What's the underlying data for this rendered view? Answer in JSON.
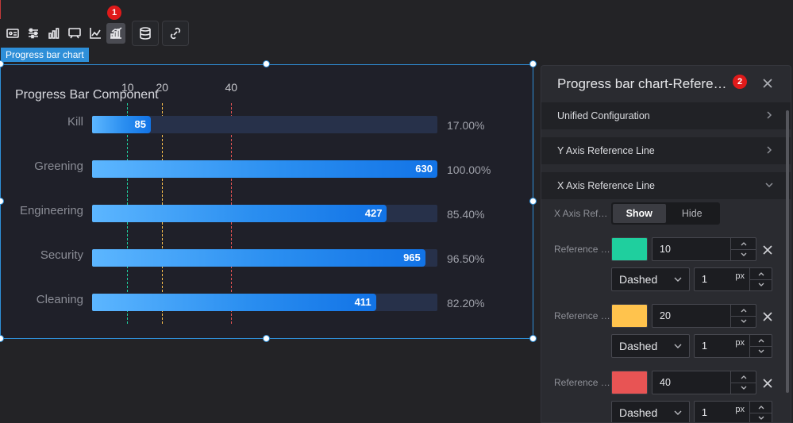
{
  "toolbar": {
    "badge": "1",
    "icons": [
      "card-icon",
      "sliders-icon",
      "bar-chart-icon",
      "comment-icon",
      "trend-icon",
      "progress-chart-icon",
      "database-icon",
      "link-icon"
    ]
  },
  "chart_tag": "Progress bar chart",
  "chart_data": {
    "type": "bar",
    "orientation": "horizontal",
    "title": "Progress Bar Component",
    "categories": [
      "Kill",
      "Greening",
      "Engineering",
      "Security",
      "Cleaning"
    ],
    "values": [
      85,
      630,
      427,
      965,
      411
    ],
    "percent_labels": [
      "17.00%",
      "100.00%",
      "85.40%",
      "96.50%",
      "82.20%"
    ],
    "percent_fill": [
      17.0,
      100.0,
      85.4,
      96.5,
      82.2
    ],
    "reference_lines": [
      {
        "value": 10,
        "color": "#1fcf9e",
        "style": "dashed"
      },
      {
        "value": 20,
        "color": "#ffc34d",
        "style": "dashed"
      },
      {
        "value": 40,
        "color": "#e85454",
        "style": "dashed"
      }
    ],
    "reference_scale_max": 100
  },
  "panel": {
    "badge": "2",
    "title": "Progress bar chart-Reference line",
    "sections": [
      {
        "label": "Unified Configuration",
        "expanded": false
      },
      {
        "label": "Y Axis Reference Line",
        "expanded": false
      },
      {
        "label": "X Axis Reference Line",
        "expanded": true
      }
    ],
    "x_axis_toggle": {
      "label": "X Axis Reference line",
      "options": [
        "Show",
        "Hide"
      ],
      "selected": "Show"
    },
    "references": [
      {
        "label": "Reference line",
        "color": "#1fcf9e",
        "value": "10",
        "line_style": "Dashed",
        "width": "1",
        "unit": "px"
      },
      {
        "label": "Reference line",
        "color": "#ffc34d",
        "value": "20",
        "line_style": "Dashed",
        "width": "1",
        "unit": "px"
      },
      {
        "label": "Reference line",
        "color": "#e85454",
        "value": "40",
        "line_style": "Dashed",
        "width": "1",
        "unit": "px"
      }
    ]
  }
}
